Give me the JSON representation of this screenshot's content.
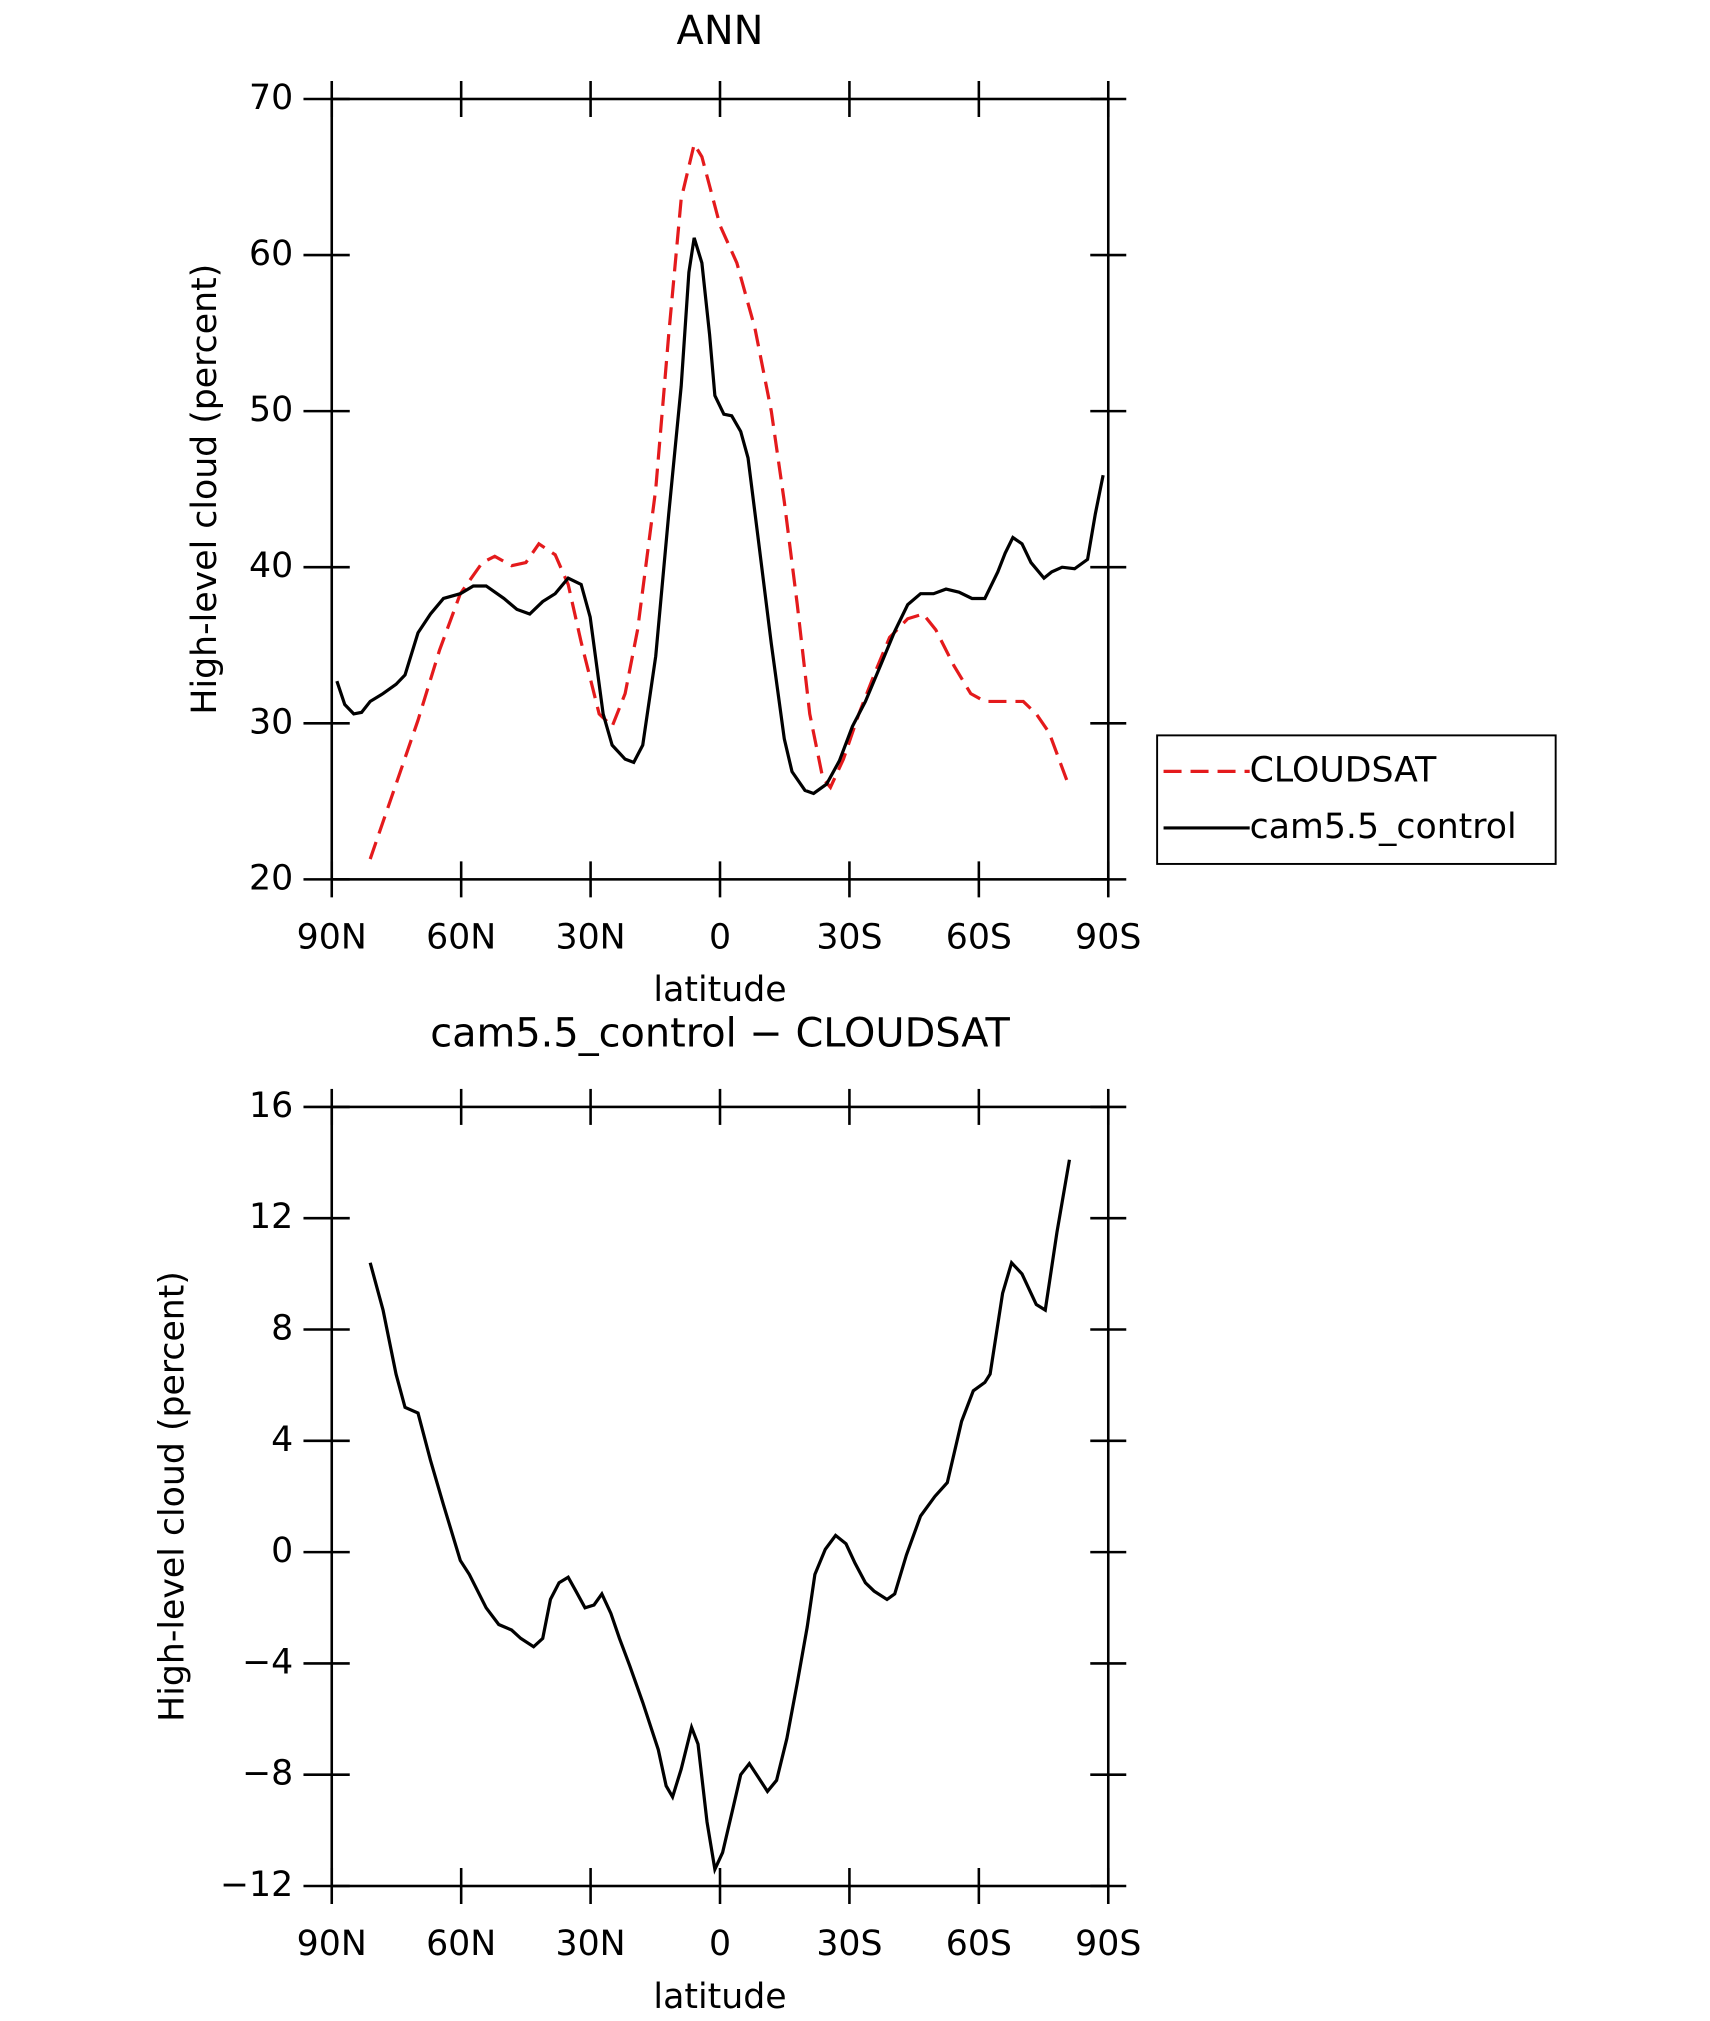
{
  "chart_data": [
    {
      "type": "line",
      "title": "ANN",
      "xlabel": "latitude",
      "ylabel": "High-level cloud (percent)",
      "xlim": [
        90,
        -90
      ],
      "ylim": [
        20,
        70
      ],
      "xticks": [
        {
          "value": 90,
          "label": "90N"
        },
        {
          "value": 60,
          "label": "60N"
        },
        {
          "value": 30,
          "label": "30N"
        },
        0,
        {
          "value": -30,
          "label": "30S"
        },
        {
          "value": -60,
          "label": "60S"
        },
        {
          "value": -90,
          "label": "90S"
        }
      ],
      "yticks": [
        20,
        30,
        40,
        50,
        60,
        70
      ],
      "legend": "right",
      "series": [
        {
          "name": "CLOUDSAT",
          "color": "#e41a1c",
          "dashed": true,
          "x": [
            81.1,
            75.1,
            70,
            65,
            60.2,
            55.1,
            52.2,
            48.3,
            45,
            42,
            38.2,
            35.2,
            32.2,
            28,
            25,
            22,
            19.1,
            14.9,
            11.9,
            9,
            6,
            4.2,
            0,
            -3.9,
            -8.1,
            -11.9,
            -14.9,
            -17.9,
            -20.8,
            -23.8,
            -25.6,
            -28.6,
            -32.2,
            -36.3,
            -39.3,
            -43.5,
            -47.1,
            -50,
            -54.2,
            -58.1,
            -61.4,
            -66.1,
            -70.3,
            -73.3,
            -76.3,
            -81
          ],
          "values": [
            21.3,
            26.1,
            30.2,
            34.7,
            38.3,
            40.3,
            40.7,
            40.1,
            40.3,
            41.5,
            40.8,
            38.9,
            35.2,
            30.6,
            29.8,
            31.9,
            36,
            45,
            54.9,
            63.6,
            67.1,
            66.3,
            61.9,
            59.5,
            55.3,
            50,
            44.2,
            37.6,
            30.6,
            26.5,
            25.9,
            27.7,
            30.6,
            33.5,
            35.5,
            36.7,
            37,
            36,
            33.7,
            31.9,
            31.4,
            31.4,
            31.4,
            30.6,
            29.4,
            25.9
          ]
        },
        {
          "name": "cam5.5_control",
          "color": "#000000",
          "dashed": false,
          "x": [
            88.8,
            87,
            84.9,
            83.1,
            81.1,
            78.1,
            75.1,
            73,
            70,
            67.1,
            64.1,
            60.2,
            57.2,
            54.2,
            50.1,
            47.1,
            44.1,
            41.1,
            38.2,
            35.2,
            32.2,
            30.1,
            27.1,
            25,
            22,
            20,
            17.9,
            14.9,
            11.9,
            9,
            7.2,
            6,
            4.2,
            2.4,
            1.2,
            -0.9,
            -2.7,
            -4.8,
            -6.5,
            -8.9,
            -11.9,
            -14.9,
            -16.7,
            -19.7,
            -21.7,
            -24.7,
            -27.7,
            -30.7,
            -33.7,
            -37.5,
            -40.5,
            -43.5,
            -46.5,
            -49.5,
            -52.4,
            -55.4,
            -58.4,
            -61.4,
            -64.4,
            -66.1,
            -67.9,
            -70,
            -72.1,
            -75.1,
            -76.9,
            -79.3,
            -82.2,
            -85.2,
            -87,
            -88.8
          ],
          "values": [
            32.7,
            31.2,
            30.6,
            30.7,
            31.4,
            31.9,
            32.5,
            33.1,
            35.8,
            37,
            38,
            38.3,
            38.8,
            38.8,
            38,
            37.3,
            37,
            37.8,
            38.3,
            39.3,
            38.9,
            36.8,
            30.6,
            28.6,
            27.7,
            27.5,
            28.6,
            34.3,
            43.4,
            51.6,
            58.9,
            61.1,
            59.5,
            54.9,
            51,
            49.8,
            49.7,
            48.7,
            47,
            41.7,
            35.1,
            29,
            26.9,
            25.7,
            25.5,
            26.1,
            27.6,
            29.8,
            31.4,
            33.9,
            35.9,
            37.6,
            38.3,
            38.3,
            38.6,
            38.4,
            38,
            38,
            39.7,
            40.9,
            41.9,
            41.5,
            40.3,
            39.3,
            39.7,
            40,
            39.9,
            40.5,
            43.4,
            45.9
          ]
        }
      ]
    },
    {
      "type": "line",
      "title": "cam5.5_control − CLOUDSAT",
      "xlabel": "latitude",
      "ylabel": "High-level cloud (percent)",
      "xlim": [
        90,
        -90
      ],
      "ylim": [
        -12,
        16
      ],
      "xticks": [
        {
          "value": 90,
          "label": "90N"
        },
        {
          "value": 60,
          "label": "60N"
        },
        {
          "value": 30,
          "label": "30N"
        },
        0,
        {
          "value": -30,
          "label": "30S"
        },
        {
          "value": -60,
          "label": "60S"
        },
        {
          "value": -90,
          "label": "90S"
        }
      ],
      "yticks": [
        {
          "value": -12,
          "label": "−12"
        },
        {
          "value": -8,
          "label": "−8"
        },
        {
          "value": -4,
          "label": "−4"
        },
        0,
        4,
        8,
        12,
        16
      ],
      "color": "#000000",
      "x": [
        81.1,
        78.1,
        75.1,
        73,
        70,
        67.1,
        64.1,
        60.2,
        58.1,
        54.2,
        51.3,
        48.3,
        46.2,
        43.2,
        41.1,
        39.3,
        37.3,
        35.2,
        33.4,
        31.3,
        29.2,
        27.4,
        25.3,
        23.3,
        20.9,
        17.9,
        14.3,
        12.5,
        11,
        9,
        6.6,
        5.1,
        3,
        1.2,
        -0.6,
        -3,
        -4.8,
        -6.8,
        -8.9,
        -11,
        -13.1,
        -15.5,
        -17.9,
        -20.2,
        -22,
        -24.4,
        -26.8,
        -29.2,
        -31.3,
        -33.7,
        -35.7,
        -38.7,
        -40.5,
        -43.2,
        -46.5,
        -49.8,
        -52.7,
        -56,
        -58.7,
        -61.4,
        -62.6,
        -65.5,
        -67.6,
        -70,
        -73.3,
        -75.4,
        -78.1,
        -81
      ],
      "values": [
        10.4,
        8.7,
        6.4,
        5.2,
        5,
        3.3,
        1.7,
        -0.3,
        -0.8,
        -2,
        -2.6,
        -2.8,
        -3.1,
        -3.4,
        -3.1,
        -1.7,
        -1.1,
        -0.9,
        -1.4,
        -2,
        -1.9,
        -1.5,
        -2.2,
        -3.1,
        -4.1,
        -5.4,
        -7.1,
        -8.4,
        -8.8,
        -7.8,
        -6.3,
        -6.9,
        -9.7,
        -11.4,
        -10.8,
        -9.2,
        -8,
        -7.6,
        -8.1,
        -8.6,
        -8.2,
        -6.7,
        -4.7,
        -2.7,
        -0.8,
        0.1,
        0.6,
        0.3,
        -0.4,
        -1.1,
        -1.4,
        -1.7,
        -1.5,
        -0.1,
        1.3,
        2,
        2.5,
        4.7,
        5.8,
        6.1,
        6.4,
        9.3,
        10.4,
        10,
        8.9,
        8.7,
        11.5,
        14.1
      ]
    }
  ]
}
